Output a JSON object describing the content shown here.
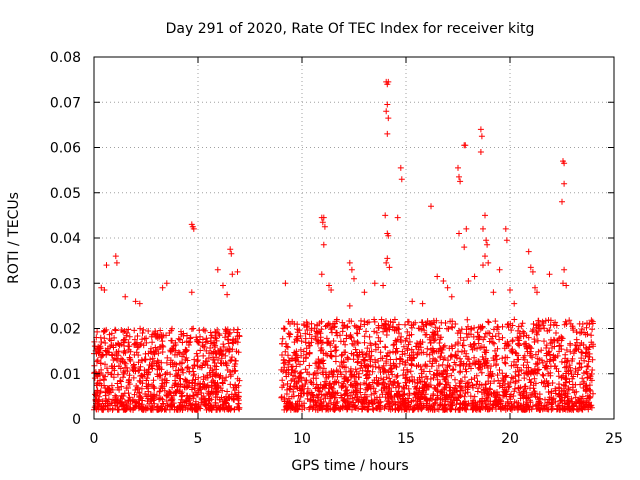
{
  "chart_data": {
    "type": "scatter",
    "title": "Day 291 of 2020, Rate Of TEC Index for receiver kitg",
    "xlabel": "GPS time / hours",
    "ylabel": "ROTI / TECUs",
    "xlim": [
      0,
      25
    ],
    "ylim": [
      0,
      0.08
    ],
    "x_ticks": [
      0,
      5,
      10,
      15,
      20,
      25
    ],
    "x_tick_labels": [
      "0",
      "5",
      "10",
      "15",
      "20",
      "25"
    ],
    "y_ticks": [
      0,
      0.01,
      0.02,
      0.03,
      0.04,
      0.05,
      0.06,
      0.07,
      0.08
    ],
    "y_tick_labels": [
      "0",
      "0.01",
      "0.02",
      "0.03",
      "0.04",
      "0.05",
      "0.06",
      "0.07",
      "0.08"
    ],
    "grid": true,
    "marker": "+",
    "color": "#ff0000",
    "data_segments": [
      {
        "x_start": 0.0,
        "x_end": 7.0,
        "typical_range": [
          0.002,
          0.02
        ]
      },
      {
        "x_start": 9.0,
        "x_end": 24.0,
        "typical_range": [
          0.002,
          0.022
        ]
      }
    ],
    "series": [
      {
        "name": "ROTI",
        "points": [
          [
            0.35,
            0.029
          ],
          [
            0.5,
            0.0285
          ],
          [
            0.6,
            0.034
          ],
          [
            1.05,
            0.036
          ],
          [
            1.1,
            0.0345
          ],
          [
            1.5,
            0.027
          ],
          [
            2.0,
            0.026
          ],
          [
            2.2,
            0.0255
          ],
          [
            3.3,
            0.029
          ],
          [
            3.5,
            0.03
          ],
          [
            4.7,
            0.043
          ],
          [
            4.75,
            0.0425
          ],
          [
            4.8,
            0.042
          ],
          [
            4.7,
            0.028
          ],
          [
            5.95,
            0.033
          ],
          [
            6.2,
            0.0295
          ],
          [
            6.4,
            0.0275
          ],
          [
            6.55,
            0.0375
          ],
          [
            6.6,
            0.0365
          ],
          [
            6.65,
            0.032
          ],
          [
            6.9,
            0.0325
          ],
          [
            9.2,
            0.03
          ],
          [
            10.95,
            0.0445
          ],
          [
            11.0,
            0.0435
          ],
          [
            11.05,
            0.0445
          ],
          [
            11.1,
            0.0425
          ],
          [
            11.05,
            0.0385
          ],
          [
            10.95,
            0.032
          ],
          [
            11.3,
            0.0295
          ],
          [
            11.4,
            0.0285
          ],
          [
            12.3,
            0.0345
          ],
          [
            12.4,
            0.033
          ],
          [
            12.5,
            0.031
          ],
          [
            12.3,
            0.025
          ],
          [
            13.0,
            0.028
          ],
          [
            13.5,
            0.03
          ],
          [
            13.9,
            0.0295
          ],
          [
            14.05,
            0.0745
          ],
          [
            14.1,
            0.074
          ],
          [
            14.15,
            0.0745
          ],
          [
            14.1,
            0.0695
          ],
          [
            14.05,
            0.068
          ],
          [
            14.15,
            0.0665
          ],
          [
            14.1,
            0.063
          ],
          [
            14.0,
            0.045
          ],
          [
            14.1,
            0.041
          ],
          [
            14.15,
            0.0405
          ],
          [
            14.1,
            0.0355
          ],
          [
            14.05,
            0.0345
          ],
          [
            14.2,
            0.0335
          ],
          [
            14.6,
            0.0445
          ],
          [
            14.75,
            0.0555
          ],
          [
            14.8,
            0.053
          ],
          [
            15.3,
            0.026
          ],
          [
            15.8,
            0.0255
          ],
          [
            16.2,
            0.047
          ],
          [
            16.5,
            0.0315
          ],
          [
            16.8,
            0.0305
          ],
          [
            17.0,
            0.029
          ],
          [
            17.2,
            0.027
          ],
          [
            17.5,
            0.0555
          ],
          [
            17.55,
            0.0535
          ],
          [
            17.6,
            0.0525
          ],
          [
            17.55,
            0.041
          ],
          [
            17.8,
            0.0605
          ],
          [
            17.85,
            0.0605
          ],
          [
            17.9,
            0.042
          ],
          [
            17.8,
            0.038
          ],
          [
            18.0,
            0.0305
          ],
          [
            18.3,
            0.0315
          ],
          [
            18.6,
            0.064
          ],
          [
            18.65,
            0.0625
          ],
          [
            18.6,
            0.059
          ],
          [
            18.8,
            0.045
          ],
          [
            18.7,
            0.042
          ],
          [
            18.85,
            0.0395
          ],
          [
            18.9,
            0.0385
          ],
          [
            18.8,
            0.036
          ],
          [
            18.95,
            0.0345
          ],
          [
            18.7,
            0.034
          ],
          [
            19.2,
            0.028
          ],
          [
            19.5,
            0.033
          ],
          [
            19.8,
            0.042
          ],
          [
            19.85,
            0.0395
          ],
          [
            20.0,
            0.0285
          ],
          [
            20.2,
            0.0255
          ],
          [
            20.9,
            0.037
          ],
          [
            21.0,
            0.0335
          ],
          [
            21.1,
            0.0325
          ],
          [
            21.2,
            0.029
          ],
          [
            21.3,
            0.028
          ],
          [
            21.9,
            0.032
          ],
          [
            22.55,
            0.057
          ],
          [
            22.6,
            0.0565
          ],
          [
            22.6,
            0.052
          ],
          [
            22.5,
            0.048
          ],
          [
            22.6,
            0.033
          ],
          [
            22.55,
            0.03
          ],
          [
            22.7,
            0.0295
          ],
          [
            23.0,
            0.0205
          ],
          [
            23.5,
            0.021
          ],
          [
            23.9,
            0.0185
          ]
        ]
      }
    ]
  }
}
